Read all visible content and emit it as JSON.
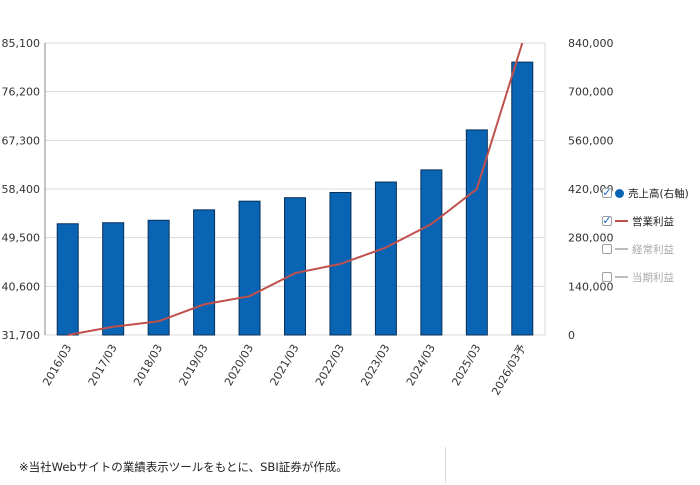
{
  "chart_data": {
    "type": "bar",
    "categories": [
      "2016/03",
      "2017/03",
      "2018/03",
      "2019/03",
      "2020/03",
      "2021/03",
      "2022/03",
      "2023/03",
      "2024/03",
      "2025/03",
      "2026/03予"
    ],
    "series": [
      {
        "name": "売上高(右軸)",
        "type": "bar",
        "axis": "right",
        "color": "#0a64b4",
        "values": [
          320000,
          323000,
          330000,
          360000,
          385000,
          395000,
          410000,
          440000,
          475000,
          590000,
          785000
        ]
      },
      {
        "name": "営業利益",
        "type": "line",
        "axis": "left",
        "color": "#c0504d",
        "values": [
          31700,
          33200,
          34200,
          37300,
          38800,
          43000,
          44700,
          47700,
          52000,
          58400,
          85100
        ]
      }
    ],
    "left_axis": {
      "min": 31700,
      "max": 85100,
      "ticks": [
        "85,100",
        "76,200",
        "67,300",
        "58,400",
        "49,500",
        "40,600",
        "31,700"
      ]
    },
    "right_axis": {
      "min": 0,
      "max": 840000,
      "ticks": [
        "840,000",
        "700,000",
        "560,000",
        "420,000",
        "280,000",
        "140,000",
        "0"
      ]
    },
    "grid": true,
    "legend_position": "right"
  },
  "legend": [
    {
      "label": "売上高(右軸)",
      "checked": true,
      "marker": "circle",
      "color": "#0a64b4",
      "dim": false
    },
    {
      "label": "営業利益",
      "checked": true,
      "marker": "line",
      "color": "#c0504d",
      "dim": false
    },
    {
      "label": "経常利益",
      "checked": false,
      "marker": "line",
      "color": "#bbbbbb",
      "dim": true
    },
    {
      "label": "当期利益",
      "checked": false,
      "marker": "line",
      "color": "#bbbbbb",
      "dim": true
    }
  ],
  "note": "※当社Webサイトの業績表示ツールをもとに、SBI証券が作成。"
}
